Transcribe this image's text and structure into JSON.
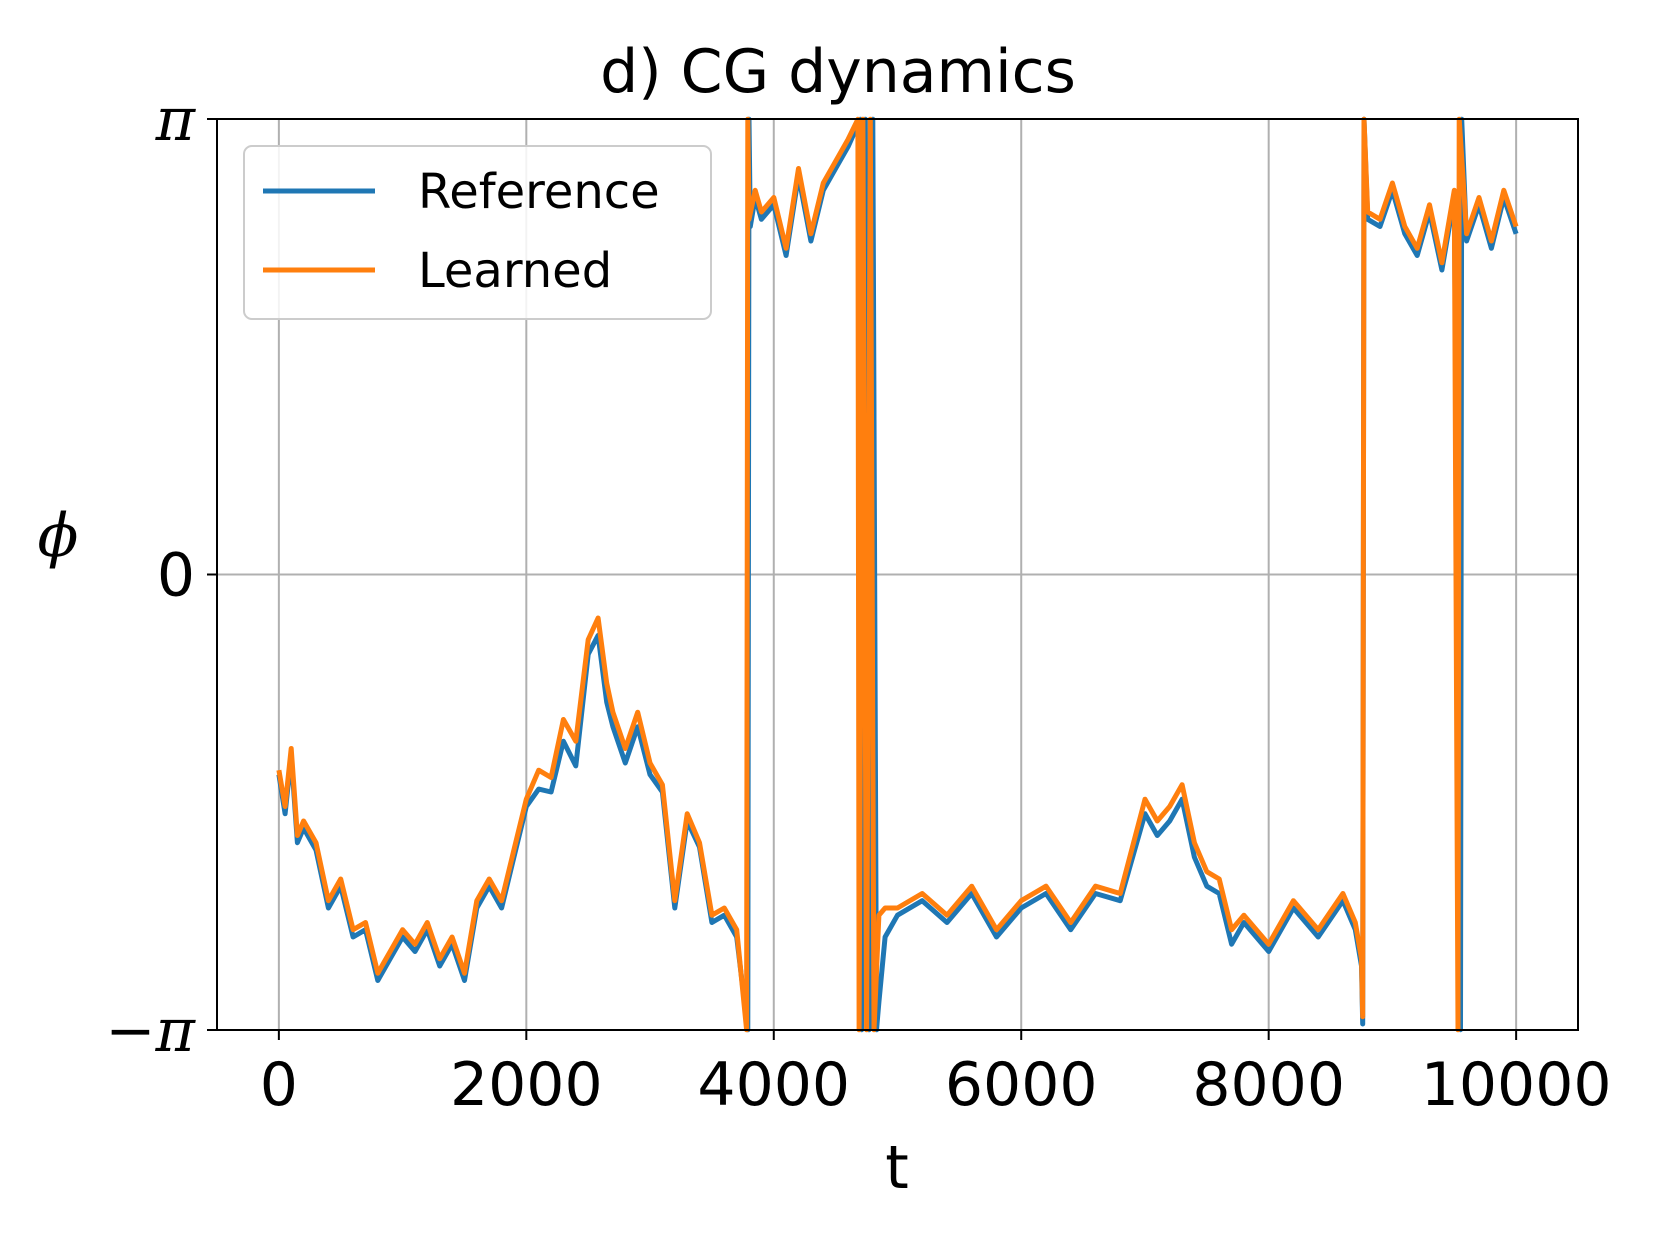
{
  "chart_data": {
    "type": "line",
    "title": "d) CG dynamics",
    "xlabel": "t",
    "ylabel": "ϕ",
    "xlim": [
      -500,
      10500
    ],
    "ylim": [
      -3.14159,
      3.14159
    ],
    "x_ticks": [
      0,
      2000,
      4000,
      6000,
      8000,
      10000
    ],
    "x_tick_labels": [
      "0",
      "2000",
      "4000",
      "6000",
      "8000",
      "10000"
    ],
    "y_ticks": [
      -3.14159,
      0,
      3.14159
    ],
    "y_tick_labels": [
      "−π",
      "0",
      "π"
    ],
    "grid": true,
    "legend_position": "top-left",
    "series": [
      {
        "name": "Reference",
        "color": "#1f77b4",
        "x": [
          0,
          50,
          100,
          150,
          200,
          300,
          400,
          500,
          600,
          700,
          800,
          900,
          1000,
          1100,
          1200,
          1300,
          1400,
          1500,
          1600,
          1700,
          1800,
          1900,
          2000,
          2100,
          2200,
          2300,
          2400,
          2500,
          2580,
          2650,
          2700,
          2800,
          2900,
          3000,
          3100,
          3200,
          3300,
          3400,
          3500,
          3600,
          3700,
          3790,
          3800,
          3810,
          3850,
          3900,
          4000,
          4100,
          4200,
          4300,
          4400,
          4500,
          4600,
          4700,
          4710,
          4740,
          4770,
          4800,
          4830,
          4850,
          4900,
          5000,
          5200,
          5400,
          5600,
          5800,
          6000,
          6200,
          6400,
          6600,
          6800,
          7000,
          7100,
          7200,
          7300,
          7400,
          7500,
          7600,
          7700,
          7800,
          8000,
          8200,
          8400,
          8600,
          8700,
          8750,
          8760,
          8770,
          8800,
          8900,
          9000,
          9100,
          9200,
          9300,
          9400,
          9500,
          9550,
          9560,
          9600,
          9700,
          9800,
          9900,
          10000
        ],
        "y": [
          -1.38,
          -1.65,
          -1.25,
          -1.85,
          -1.75,
          -1.9,
          -2.3,
          -2.15,
          -2.5,
          -2.45,
          -2.8,
          -2.65,
          -2.5,
          -2.6,
          -2.45,
          -2.7,
          -2.55,
          -2.8,
          -2.3,
          -2.15,
          -2.3,
          -1.95,
          -1.6,
          -1.48,
          -1.5,
          -1.15,
          -1.32,
          -0.55,
          -0.42,
          -0.88,
          -1.05,
          -1.3,
          -1.05,
          -1.38,
          -1.5,
          -2.3,
          -1.7,
          -1.88,
          -2.4,
          -2.35,
          -2.5,
          -3.14,
          3.14,
          2.4,
          2.6,
          2.45,
          2.55,
          2.2,
          2.75,
          2.3,
          2.65,
          2.8,
          2.95,
          3.14,
          -3.14,
          3.14,
          -3.14,
          3.14,
          -3.14,
          -2.95,
          -2.5,
          -2.35,
          -2.25,
          -2.4,
          -2.2,
          -2.5,
          -2.3,
          -2.2,
          -2.45,
          -2.2,
          -2.25,
          -1.65,
          -1.8,
          -1.7,
          -1.55,
          -1.95,
          -2.15,
          -2.2,
          -2.55,
          -2.4,
          -2.6,
          -2.3,
          -2.5,
          -2.25,
          -2.45,
          -2.7,
          -3.1,
          3.14,
          2.45,
          2.4,
          2.65,
          2.35,
          2.2,
          2.5,
          2.1,
          2.6,
          -3.14,
          3.14,
          2.3,
          2.55,
          2.25,
          2.6,
          2.35
        ]
      },
      {
        "name": "Learned",
        "color": "#ff7f0e",
        "x": [
          0,
          50,
          100,
          150,
          200,
          300,
          400,
          500,
          600,
          700,
          800,
          900,
          1000,
          1100,
          1200,
          1300,
          1400,
          1500,
          1600,
          1700,
          1800,
          1900,
          2000,
          2100,
          2200,
          2300,
          2400,
          2500,
          2580,
          2650,
          2700,
          2800,
          2900,
          3000,
          3100,
          3200,
          3300,
          3400,
          3500,
          3600,
          3700,
          3780,
          3790,
          3800,
          3850,
          3900,
          4000,
          4100,
          4200,
          4300,
          4400,
          4500,
          4600,
          4680,
          4690,
          4720,
          4750,
          4780,
          4810,
          4850,
          4900,
          5000,
          5200,
          5400,
          5600,
          5800,
          6000,
          6200,
          6400,
          6600,
          6800,
          7000,
          7100,
          7200,
          7300,
          7400,
          7500,
          7600,
          7700,
          7800,
          8000,
          8200,
          8400,
          8600,
          8700,
          8750,
          8760,
          8770,
          8800,
          8900,
          9000,
          9100,
          9200,
          9300,
          9400,
          9500,
          9530,
          9540,
          9600,
          9700,
          9800,
          9900,
          10000
        ],
        "y": [
          -1.35,
          -1.6,
          -1.2,
          -1.8,
          -1.7,
          -1.85,
          -2.25,
          -2.1,
          -2.45,
          -2.4,
          -2.75,
          -2.6,
          -2.45,
          -2.55,
          -2.4,
          -2.65,
          -2.5,
          -2.75,
          -2.25,
          -2.1,
          -2.25,
          -1.9,
          -1.55,
          -1.35,
          -1.4,
          -1.0,
          -1.15,
          -0.45,
          -0.3,
          -0.75,
          -0.95,
          -1.2,
          -0.95,
          -1.3,
          -1.45,
          -2.25,
          -1.65,
          -1.85,
          -2.35,
          -2.3,
          -2.45,
          -3.14,
          3.14,
          2.45,
          2.65,
          2.5,
          2.6,
          2.25,
          2.8,
          2.35,
          2.7,
          2.85,
          3.0,
          3.14,
          -3.14,
          3.14,
          -3.14,
          3.14,
          -3.14,
          -2.35,
          -2.3,
          -2.3,
          -2.2,
          -2.35,
          -2.15,
          -2.45,
          -2.25,
          -2.15,
          -2.4,
          -2.15,
          -2.2,
          -1.55,
          -1.7,
          -1.6,
          -1.45,
          -1.85,
          -2.05,
          -2.1,
          -2.45,
          -2.35,
          -2.55,
          -2.25,
          -2.45,
          -2.2,
          -2.4,
          -2.65,
          -3.05,
          3.14,
          2.5,
          2.45,
          2.7,
          2.4,
          2.25,
          2.55,
          2.15,
          2.65,
          -3.14,
          3.14,
          2.35,
          2.6,
          2.3,
          2.65,
          2.4
        ]
      }
    ]
  }
}
